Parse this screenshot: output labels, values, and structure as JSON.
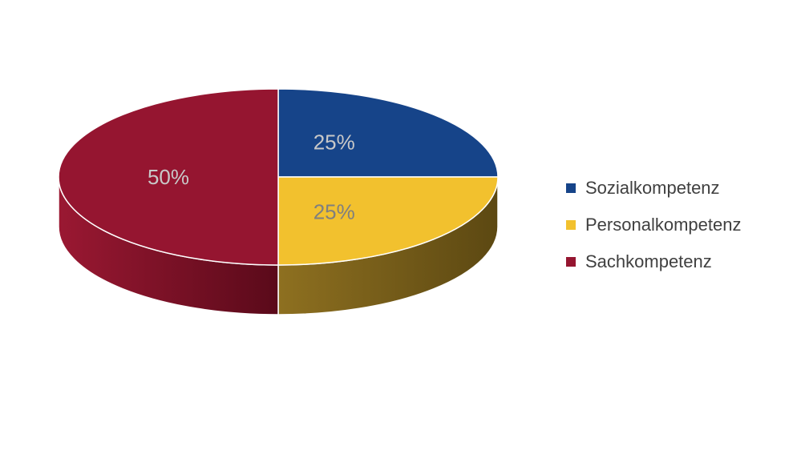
{
  "chart_data": {
    "type": "pie",
    "style": "3d",
    "categories": [
      "Sozialkompetenz",
      "Personalkompetenz",
      "Sachkompetenz"
    ],
    "values": [
      25,
      25,
      50
    ],
    "data_labels": [
      "25%",
      "25%",
      "50%"
    ],
    "colors": [
      "#164489",
      "#F2C12E",
      "#951530"
    ],
    "side_colors": [
      "#0b2250",
      "#6b5516",
      "#5e0b1c"
    ],
    "label_colors": [
      "#C8C8C8",
      "#7F7F7F",
      "#C8C8C8"
    ],
    "legend_placement": "right",
    "title": ""
  },
  "legend": {
    "items": [
      {
        "label": "Sozialkompetenz",
        "color": "#164489"
      },
      {
        "label": "Personalkompetenz",
        "color": "#F2C12E"
      },
      {
        "label": "Sachkompetenz",
        "color": "#951530"
      }
    ]
  }
}
